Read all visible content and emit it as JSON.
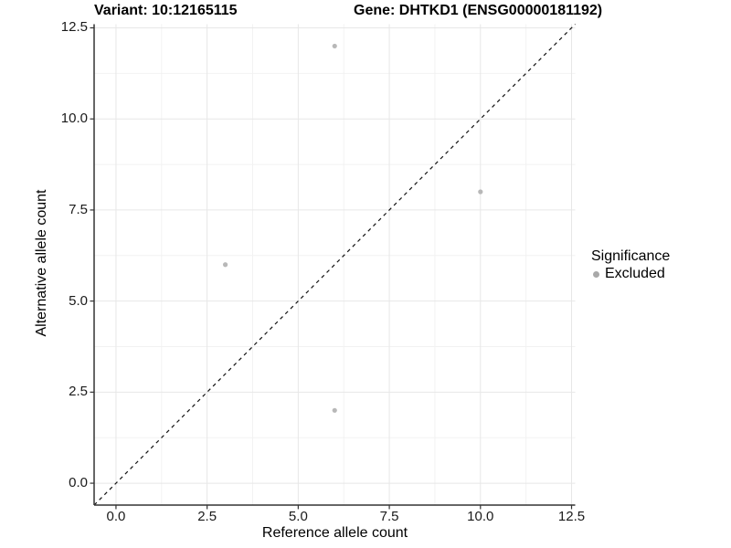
{
  "header": {
    "variant_title": "Variant: 10:12165115",
    "gene_title": "Gene: DHTKD1 (ENSG00000181192)"
  },
  "chart_data": {
    "type": "scatter",
    "title_parts": {
      "variant": "Variant: 10:12165115",
      "gene": "Gene: DHTKD1 (ENSG00000181192)"
    },
    "xlabel": "Reference allele count",
    "ylabel": "Alternative allele count",
    "series": [
      {
        "name": "Excluded",
        "color": "#b8b8b8",
        "points": [
          {
            "x": 3,
            "y": 6
          },
          {
            "x": 6,
            "y": 2
          },
          {
            "x": 6,
            "y": 12
          },
          {
            "x": 10,
            "y": 8
          }
        ]
      }
    ],
    "x_ticks": {
      "values": [
        0,
        2.5,
        5,
        7.5,
        10,
        12.5
      ],
      "labels": [
        "0.0",
        "2.5",
        "5.0",
        "7.5",
        "10.0",
        "12.5"
      ]
    },
    "y_ticks": {
      "values": [
        0,
        2.5,
        5,
        7.5,
        10,
        12.5
      ],
      "labels": [
        "0.0",
        "2.5",
        "5.0",
        "7.5",
        "10.0",
        "12.5"
      ]
    },
    "minor_gridlines": [
      1.25,
      3.75,
      6.25,
      8.75,
      11.25
    ],
    "xlim": [
      -0.6,
      12.6
    ],
    "ylim": [
      -0.6,
      12.6
    ],
    "grid": true,
    "reference_line": {
      "kind": "identity",
      "style": "dashed",
      "from": -0.6,
      "to": 12.6
    },
    "legend": {
      "position": "right",
      "title": "Significance",
      "items": [
        {
          "label": "Excluded",
          "color": "#a9a9a9"
        }
      ]
    },
    "colors": {
      "point": "#b8b8b8",
      "legend_dot": "#a9a9a9",
      "axis_line": "#333333",
      "tick_mark": "#333333",
      "grid_major": "#e7e7e7",
      "grid_minor": "#f2f2f2",
      "diagonal": "#111111"
    }
  }
}
